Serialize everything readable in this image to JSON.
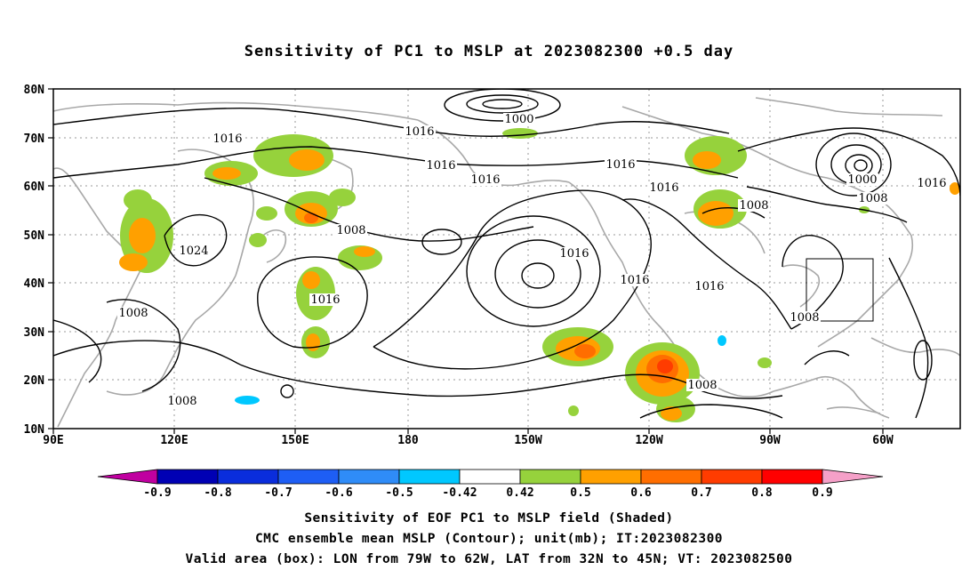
{
  "title": "Sensitivity of PC1 to MSLP at 2023082300 +0.5 day",
  "map": {
    "lat_labels": [
      "80N",
      "70N",
      "60N",
      "50N",
      "40N",
      "30N",
      "20N",
      "10N"
    ],
    "lon_labels": [
      "90E",
      "120E",
      "150E",
      "180",
      "150W",
      "120W",
      "90W",
      "60W"
    ],
    "contour_labels": [
      "1000",
      "1016",
      "1016",
      "1016",
      "1016",
      "1016",
      "1016",
      "1000",
      "1008",
      "1016",
      "1008",
      "1008",
      "1024",
      "1016",
      "1016",
      "1016",
      "1016",
      "1008",
      "1008",
      "1008",
      "1008"
    ],
    "valid_box": {
      "lon_from": "79W",
      "lon_to": "62W",
      "lat_from": "32N",
      "lat_to": "45N"
    }
  },
  "colorbar": {
    "labels": [
      "-0.9",
      "-0.8",
      "-0.7",
      "-0.6",
      "-0.5",
      "-0.42",
      "0.42",
      "0.5",
      "0.6",
      "0.7",
      "0.8",
      "0.9"
    ],
    "colors": [
      "#0000b4",
      "#0a2ddc",
      "#1e5ef5",
      "#2f8cf8",
      "#00c8ff",
      "#ffffff",
      "#96d23c",
      "#ffa000",
      "#ff6e00",
      "#ff3c00",
      "#ff0000"
    ],
    "low_end_color": "#c000a0",
    "high_end_color": "#f5a0c8"
  },
  "footer": {
    "line1": "Sensitivity of EOF PC1 to MSLP field (Shaded)",
    "line2": "CMC ensemble mean MSLP (Contour); unit(mb); IT:2023082300",
    "line3": "Valid area (box): LON from 79W to 62W, LAT from 32N to 45N; VT: 2023082500"
  }
}
